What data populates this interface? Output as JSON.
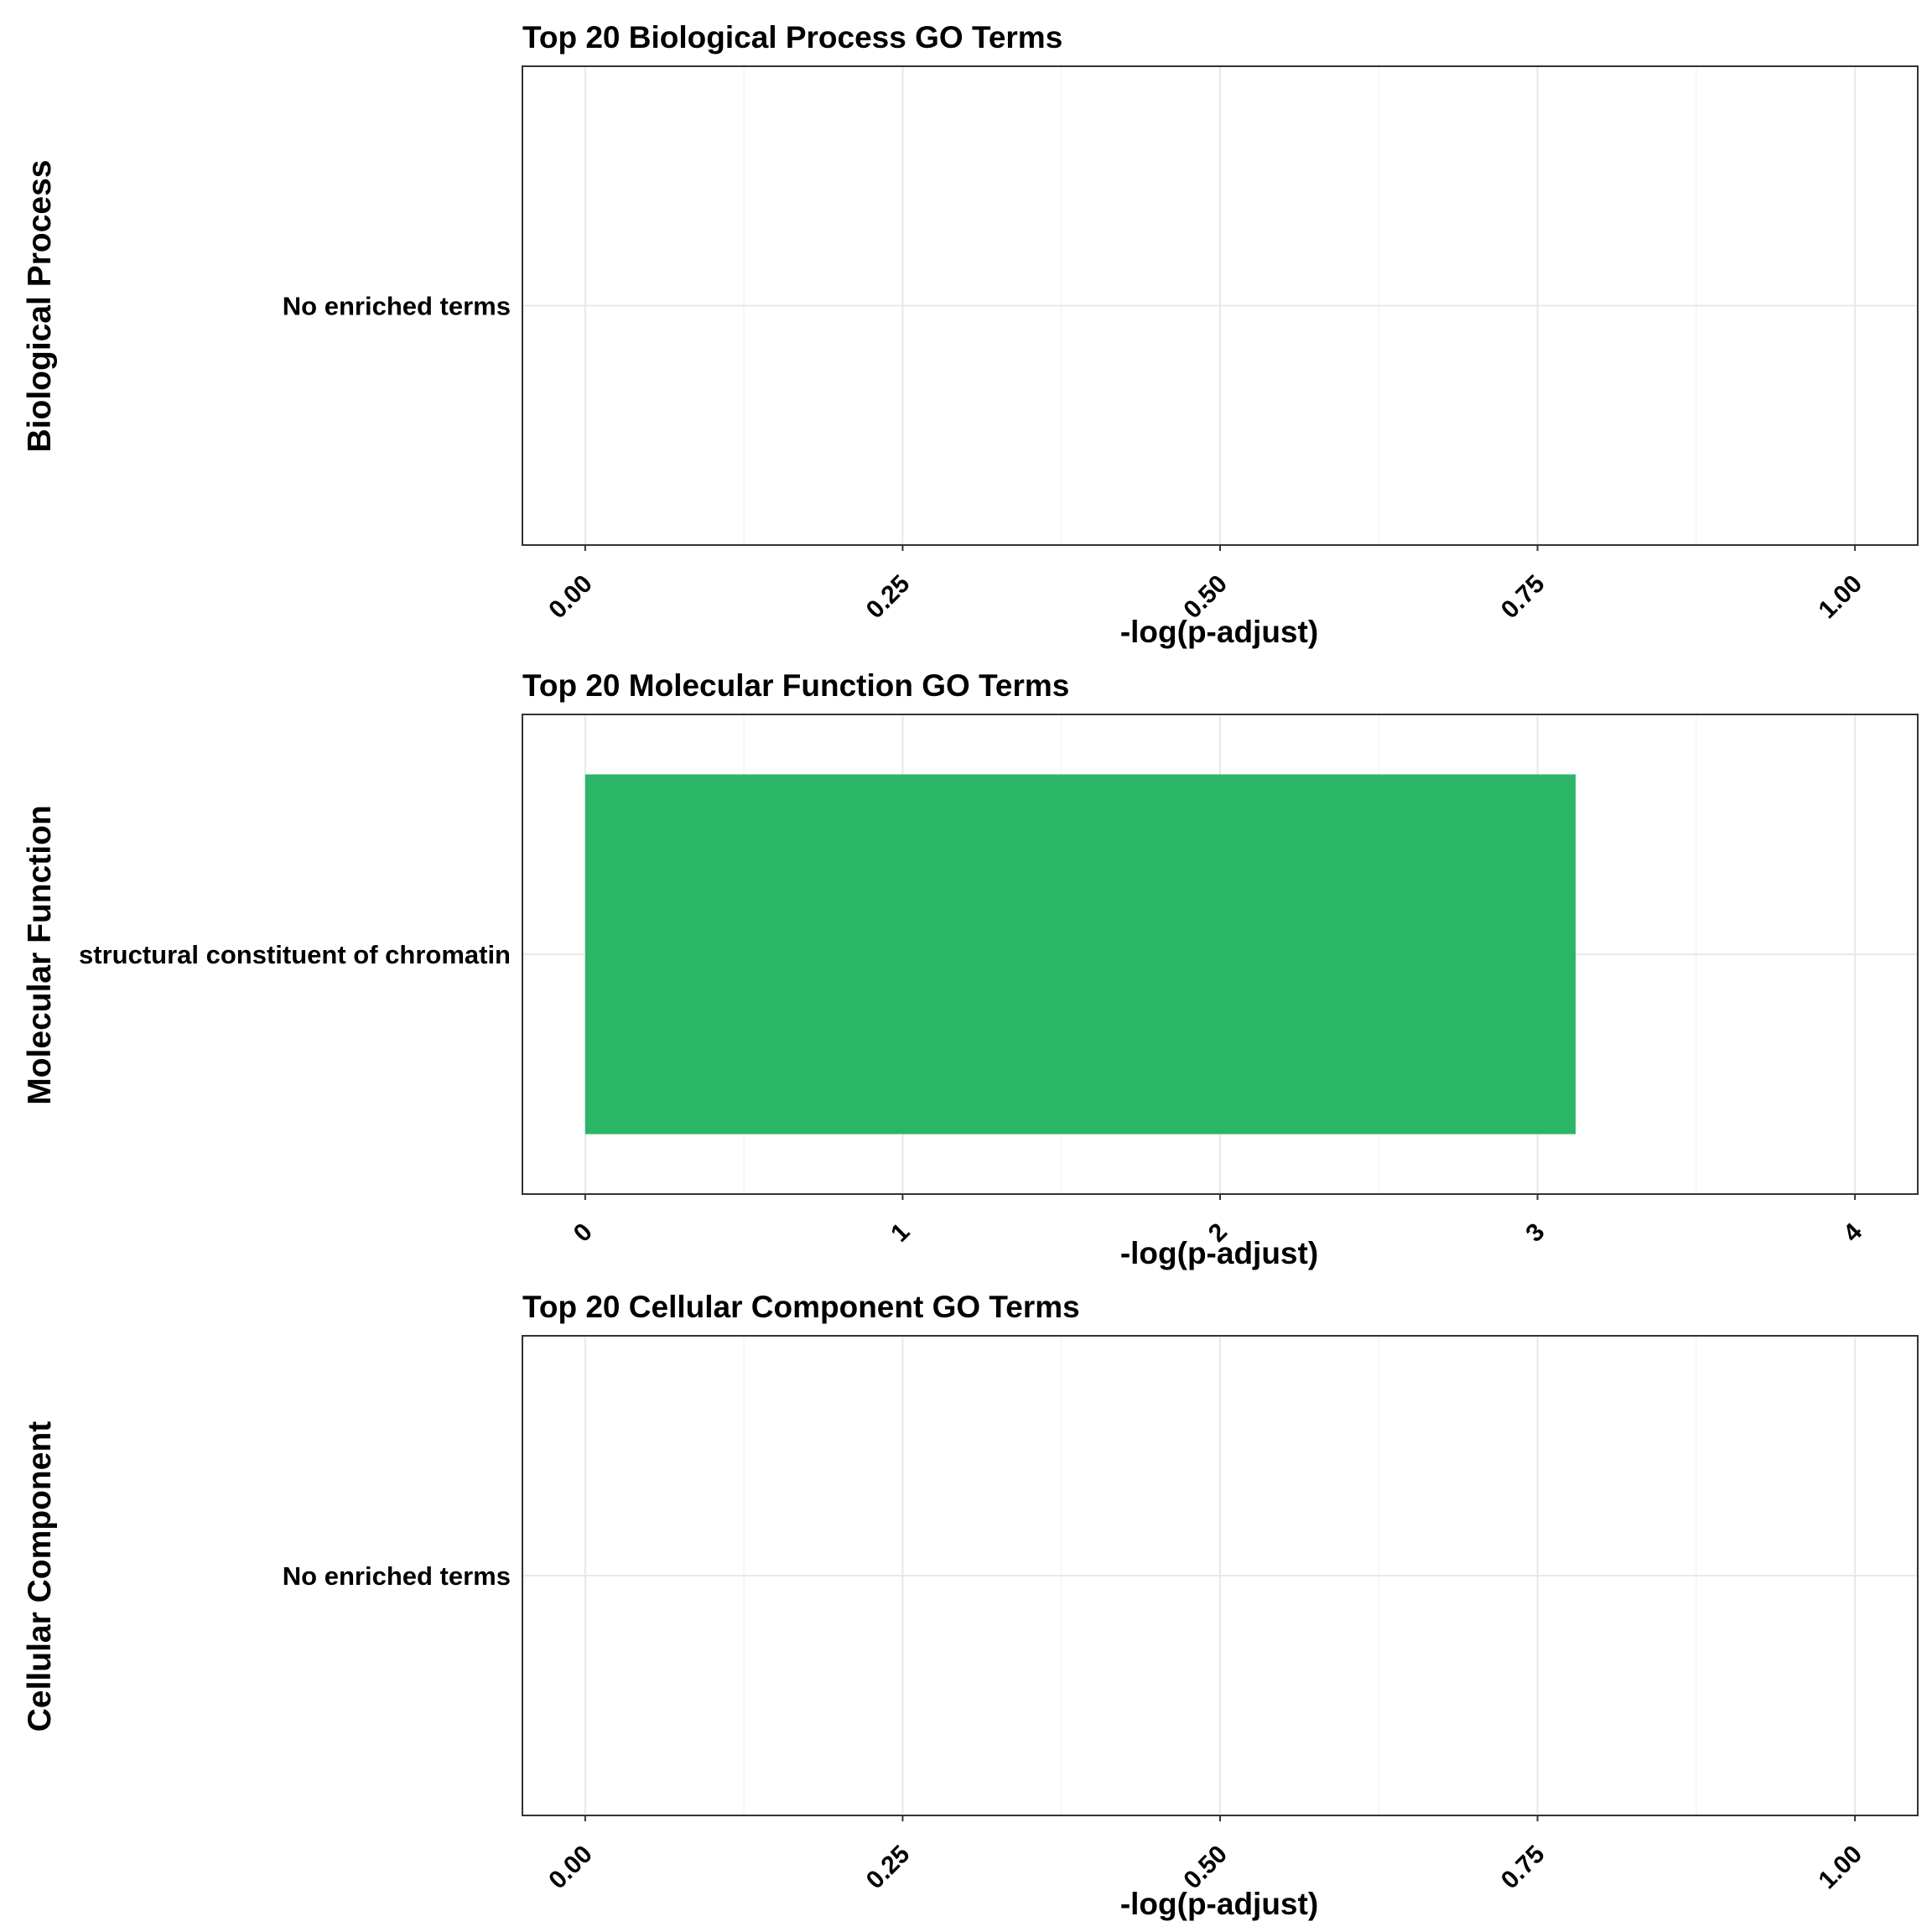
{
  "chart_data": [
    {
      "type": "bar",
      "orientation": "horizontal",
      "title": "Top 20 Biological Process GO Terms",
      "strip_label": "Biological Process",
      "xlabel": "-log(p-adjust)",
      "ylabel": "",
      "categories": [
        "No enriched terms"
      ],
      "values": [
        0
      ],
      "xlim": [
        0,
        1
      ],
      "xticks": [
        0,
        0.25,
        0.5,
        0.75,
        1
      ],
      "xtick_labels": [
        "0.00",
        "0.25",
        "0.50",
        "0.75",
        "1.00"
      ],
      "grid": true,
      "legend": "none",
      "bar_color": "#2BB566"
    },
    {
      "type": "bar",
      "orientation": "horizontal",
      "title": "Top 20 Molecular Function GO Terms",
      "strip_label": "Molecular Function",
      "xlabel": "-log(p-adjust)",
      "ylabel": "",
      "categories": [
        "structural constituent of chromatin"
      ],
      "values": [
        3.12
      ],
      "xlim": [
        0,
        4
      ],
      "xticks": [
        0,
        1,
        2,
        3,
        4
      ],
      "xtick_labels": [
        "0",
        "1",
        "2",
        "3",
        "4"
      ],
      "grid": true,
      "legend": "none",
      "bar_color": "#2BB566"
    },
    {
      "type": "bar",
      "orientation": "horizontal",
      "title": "Top 20 Cellular Component GO Terms",
      "strip_label": "Cellular Component",
      "xlabel": "-log(p-adjust)",
      "ylabel": "",
      "categories": [
        "No enriched terms"
      ],
      "values": [
        0
      ],
      "xlim": [
        0,
        1
      ],
      "xticks": [
        0,
        0.25,
        0.5,
        0.75,
        1
      ],
      "xtick_labels": [
        "0.00",
        "0.25",
        "0.50",
        "0.75",
        "1.00"
      ],
      "grid": true,
      "legend": "none",
      "bar_color": "#2BB566"
    }
  ]
}
